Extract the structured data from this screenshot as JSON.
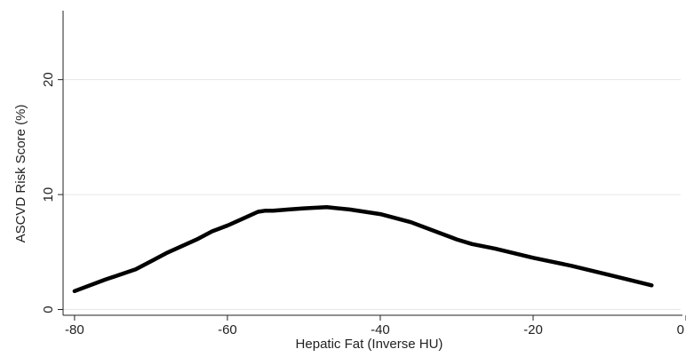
{
  "chart_data": {
    "type": "line",
    "title": "",
    "xlabel": "Hepatic Fat (Inverse HU)",
    "ylabel": "ASCVD Risk Score (%)",
    "xlim": [
      -81.5,
      0
    ],
    "ylim": [
      -0.5,
      26
    ],
    "xticks": [
      -80,
      -60,
      -40,
      -20,
      0
    ],
    "yticks": [
      0,
      10,
      20
    ],
    "grid": true,
    "legend": "none",
    "colors": {
      "line": "#000000",
      "grid": "#e6e6e6",
      "axis": "#222222"
    },
    "series": [
      {
        "x": [
          -80,
          -76,
          -72,
          -70,
          -68,
          -66,
          -64,
          -62,
          -60,
          -58,
          -56,
          -55,
          -54,
          -52,
          -50,
          -47,
          -44,
          -40,
          -36,
          -32,
          -30,
          -28,
          -25,
          -20,
          -15,
          -10,
          -4.5
        ],
        "y": [
          1.6,
          2.6,
          3.5,
          4.2,
          4.9,
          5.5,
          6.1,
          6.8,
          7.3,
          7.9,
          8.5,
          8.6,
          8.6,
          8.7,
          8.8,
          8.9,
          8.7,
          8.3,
          7.6,
          6.6,
          6.1,
          5.7,
          5.3,
          4.5,
          3.8,
          3.0,
          2.1
        ]
      }
    ]
  }
}
